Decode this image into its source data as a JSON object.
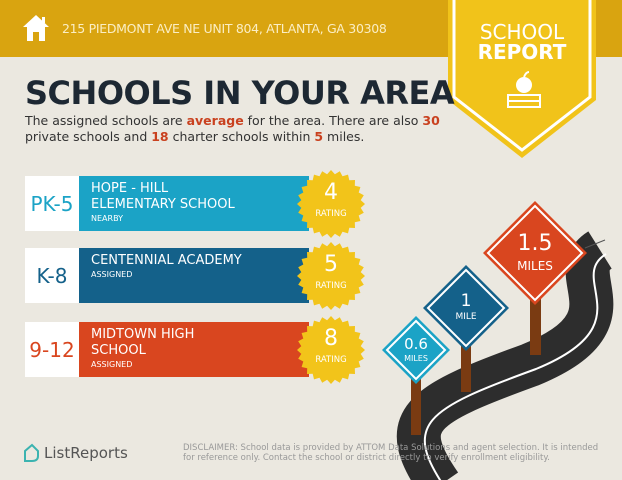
{
  "header": {
    "address": "215 PIEDMONT AVE NE UNIT 804, ATLANTA, GA 30308",
    "icon": "home-icon"
  },
  "badge": {
    "line1": "SCHOOL",
    "line2": "REPORT",
    "icon": "apple-books-icon"
  },
  "title": "SCHOOLS IN YOUR AREA",
  "summary": {
    "p1": "The assigned schools are ",
    "quality": "average",
    "p2": " for the area. There are also ",
    "private_count": "30",
    "p3": " private schools and ",
    "charter_count": "18",
    "p4": " charter schools within ",
    "miles": "5",
    "p5": " miles."
  },
  "schools": [
    {
      "grades": "PK-5",
      "name": "HOPE - HILL ELEMENTARY SCHOOL",
      "status": "NEARBY",
      "rating": "4",
      "rating_label": "RATING",
      "color": "#1ba3c6"
    },
    {
      "grades": "K-8",
      "name": "CENTENNIAL ACADEMY",
      "status": "ASSIGNED",
      "rating": "5",
      "rating_label": "RATING",
      "color": "#14618a"
    },
    {
      "grades": "9-12",
      "name": "MIDTOWN HIGH SCHOOL",
      "status": "ASSIGNED",
      "rating": "8",
      "rating_label": "RATING",
      "color": "#d9461f"
    }
  ],
  "signs": [
    {
      "value": "0.6",
      "unit": "MILES",
      "color": "#1ba3c6"
    },
    {
      "value": "1",
      "unit": "MILE",
      "color": "#14618a"
    },
    {
      "value": "1.5",
      "unit": "MILES",
      "color": "#d9461f"
    }
  ],
  "footer": {
    "brand": "ListReports",
    "disclaimer": "DISCLAIMER: School data is provided by ATTOM Data Solutions and agent selection. It is intended for reference only. Contact the school or district directly to verify enrollment eligibility."
  }
}
